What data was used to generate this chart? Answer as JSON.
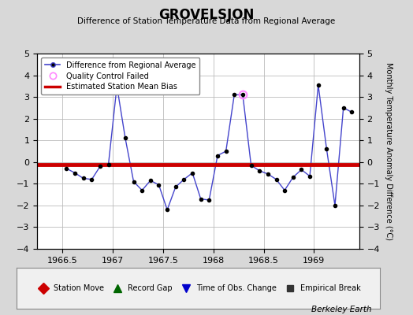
{
  "title": "GROVELSJON",
  "subtitle": "Difference of Station Temperature Data from Regional Average",
  "ylabel_right": "Monthly Temperature Anomaly Difference (°C)",
  "mean_bias": -0.1,
  "xlim": [
    1966.25,
    1969.45
  ],
  "ylim": [
    -4,
    5
  ],
  "yticks": [
    -4,
    -3,
    -2,
    -1,
    0,
    1,
    2,
    3,
    4,
    5
  ],
  "xticks": [
    1966.5,
    1967.0,
    1967.5,
    1968.0,
    1968.5,
    1969.0
  ],
  "xticklabels": [
    "1966.5",
    "1967",
    "1967.5",
    "1968",
    "1968.5",
    "1969"
  ],
  "bg_color": "#d8d8d8",
  "plot_bg_color": "#ffffff",
  "line_color": "#4444cc",
  "marker_color": "#000000",
  "bias_color": "#cc0000",
  "qc_color": "#ff88ff",
  "berkeley_earth_text": "Berkeley Earth",
  "x_data": [
    1966.542,
    1966.625,
    1966.708,
    1966.792,
    1966.875,
    1966.958,
    1967.042,
    1967.125,
    1967.208,
    1967.292,
    1967.375,
    1967.458,
    1967.542,
    1967.625,
    1967.708,
    1967.792,
    1967.875,
    1967.958,
    1968.042,
    1968.125,
    1968.208,
    1968.292,
    1968.375,
    1968.458,
    1968.542,
    1968.625,
    1968.708,
    1968.792,
    1968.875,
    1968.958,
    1969.042,
    1969.125,
    1969.208,
    1969.292,
    1969.375
  ],
  "y_data": [
    -0.3,
    -0.5,
    -0.75,
    -0.8,
    -0.2,
    -0.1,
    3.5,
    1.1,
    -0.9,
    -1.3,
    -0.85,
    -1.05,
    -2.2,
    -1.15,
    -0.8,
    -0.5,
    -1.7,
    -1.75,
    0.3,
    0.5,
    3.1,
    3.1,
    -0.15,
    -0.4,
    -0.55,
    -0.8,
    -1.3,
    -0.7,
    -0.35,
    -0.65,
    3.55,
    0.6,
    -2.0,
    2.5,
    2.3
  ],
  "qc_failed_indices": [
    21
  ],
  "bottom_legend": [
    {
      "label": "Station Move",
      "marker": "D",
      "color": "#cc0000",
      "ms": 7
    },
    {
      "label": "Record Gap",
      "marker": "^",
      "color": "#006600",
      "ms": 7
    },
    {
      "label": "Time of Obs. Change",
      "marker": "v",
      "color": "#0000cc",
      "ms": 7
    },
    {
      "label": "Empirical Break",
      "marker": "s",
      "color": "#333333",
      "ms": 6
    }
  ]
}
